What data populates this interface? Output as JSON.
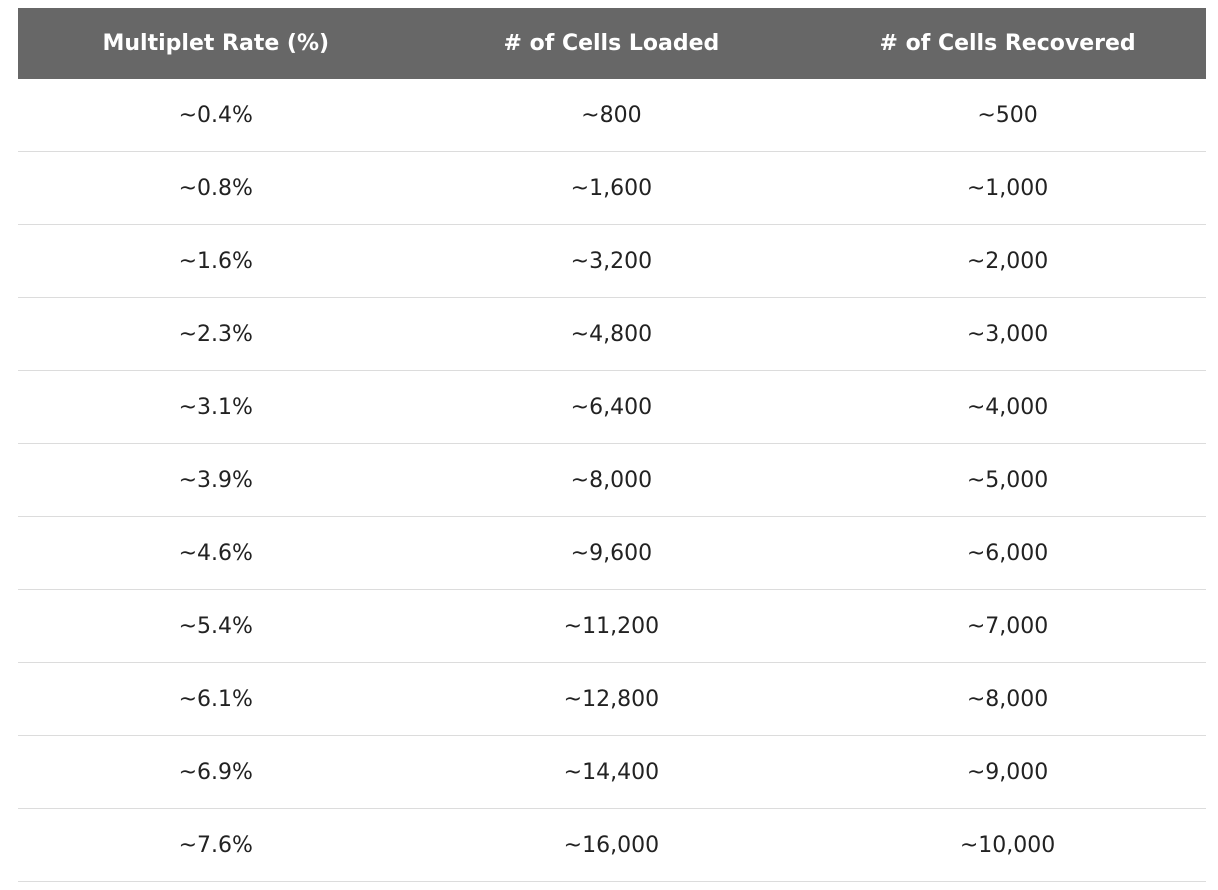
{
  "table": {
    "headers": [
      "Multiplet Rate (%)",
      "# of Cells Loaded",
      "# of Cells Recovered"
    ],
    "rows": [
      [
        "~0.4%",
        "~800",
        "~500"
      ],
      [
        "~0.8%",
        "~1,600",
        "~1,000"
      ],
      [
        "~1.6%",
        "~3,200",
        "~2,000"
      ],
      [
        "~2.3%",
        "~4,800",
        "~3,000"
      ],
      [
        "~3.1%",
        "~6,400",
        "~4,000"
      ],
      [
        "~3.9%",
        "~8,000",
        "~5,000"
      ],
      [
        "~4.6%",
        "~9,600",
        "~6,000"
      ],
      [
        "~5.4%",
        "~11,200",
        "~7,000"
      ],
      [
        "~6.1%",
        "~12,800",
        "~8,000"
      ],
      [
        "~6.9%",
        "~14,400",
        "~9,000"
      ],
      [
        "~7.6%",
        "~16,000",
        "~10,000"
      ]
    ]
  },
  "colors": {
    "header_bg": "#676767",
    "header_text": "#ffffff",
    "row_divider": "#dcdcdc",
    "cell_text": "#222222"
  }
}
